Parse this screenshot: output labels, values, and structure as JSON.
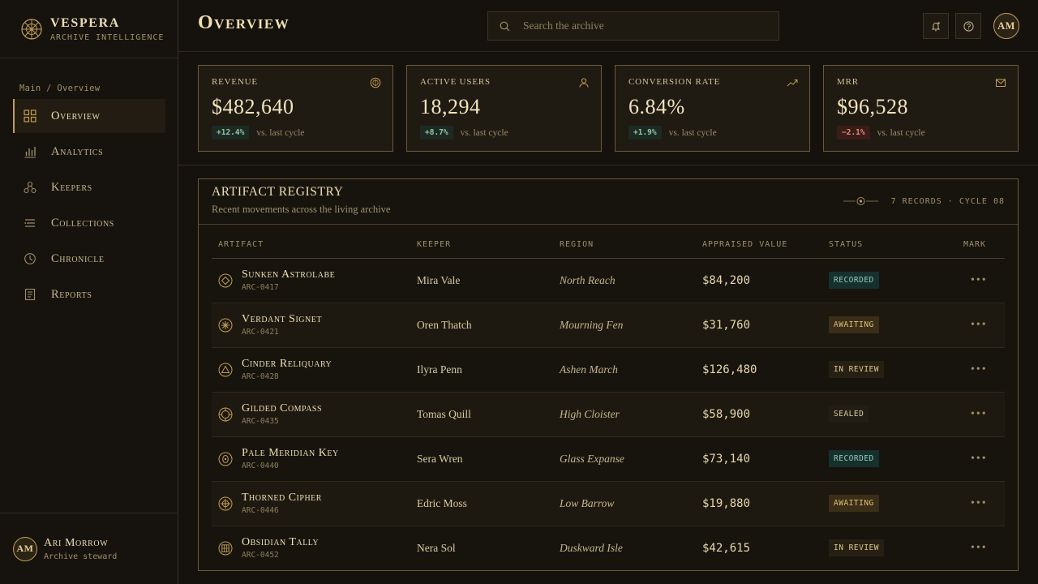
{
  "brand": {
    "name": "VESPERA",
    "tagline": "ARCHIVE INTELLIGENCE"
  },
  "breadcrumb": "Main / Overview",
  "nav": [
    {
      "label": "Overview",
      "icon": "grid-icon",
      "active": true
    },
    {
      "label": "Analytics",
      "icon": "bar-chart-icon"
    },
    {
      "label": "Keepers",
      "icon": "people-nodes-icon"
    },
    {
      "label": "Collections",
      "icon": "layers-icon"
    },
    {
      "label": "Chronicle",
      "icon": "clock-icon"
    },
    {
      "label": "Reports",
      "icon": "document-icon"
    }
  ],
  "user": {
    "initials": "AM",
    "name": "Ari Morrow",
    "role": "Archive steward"
  },
  "header": {
    "title": "Overview",
    "search_placeholder": "Search the archive",
    "avatar": "AM"
  },
  "kpis": [
    {
      "label": "Revenue",
      "value": "$482,640",
      "delta": "+12.4%",
      "trend": "up",
      "note": "vs. last cycle",
      "icon": "coin-icon"
    },
    {
      "label": "Active Users",
      "value": "18,294",
      "delta": "+8.7%",
      "trend": "up",
      "note": "vs. last cycle",
      "icon": "user-icon"
    },
    {
      "label": "Conversion Rate",
      "value": "6.84%",
      "delta": "+1.9%",
      "trend": "up",
      "note": "vs. last cycle",
      "icon": "trend-up-icon"
    },
    {
      "label": "MRR",
      "value": "$96,528",
      "delta": "−2.1%",
      "trend": "down",
      "note": "vs. last cycle",
      "icon": "envelope-icon"
    }
  ],
  "registry": {
    "title": "ARTIFACT REGISTRY",
    "subtitle": "Recent movements across the living archive",
    "meta": "7 RECORDS · CYCLE 08",
    "columns": [
      "ARTIFACT",
      "KEEPER",
      "REGION",
      "APPRAISED VALUE",
      "STATUS",
      "MARK"
    ],
    "rows": [
      {
        "name": "Sunken Astrolabe",
        "id": "ARC-0417",
        "keeper": "Mira Vale",
        "region": "North Reach",
        "value": "$84,200",
        "status": "RECORDED",
        "icon": "diamond-icon"
      },
      {
        "name": "Verdant Signet",
        "id": "ARC-0421",
        "keeper": "Oren Thatch",
        "region": "Mourning Fen",
        "value": "$31,760",
        "status": "AWAITING",
        "icon": "asterisk-icon"
      },
      {
        "name": "Cinder Reliquary",
        "id": "ARC-0428",
        "keeper": "Ilyra Penn",
        "region": "Ashen March",
        "value": "$126,480",
        "status": "IN REVIEW",
        "icon": "triangle-icon"
      },
      {
        "name": "Gilded Compass",
        "id": "ARC-0435",
        "keeper": "Tomas Quill",
        "region": "High Cloister",
        "value": "$58,900",
        "status": "SEALED",
        "icon": "compass-icon"
      },
      {
        "name": "Pale Meridian Key",
        "id": "ARC-0440",
        "keeper": "Sera Wren",
        "region": "Glass Expanse",
        "value": "$73,140",
        "status": "RECORDED",
        "icon": "key-icon"
      },
      {
        "name": "Thorned Cipher",
        "id": "ARC-0446",
        "keeper": "Edric Moss",
        "region": "Low Barrow",
        "value": "$19,880",
        "status": "AWAITING",
        "icon": "crosshair-icon"
      },
      {
        "name": "Obsidian Tally",
        "id": "ARC-0452",
        "keeper": "Nera Sol",
        "region": "Duskward Isle",
        "value": "$42,615",
        "status": "IN REVIEW",
        "icon": "tally-icon"
      }
    ]
  },
  "colors": {
    "accent": "#c29e55",
    "background": "#15120d",
    "positive": "#8fc8a8",
    "negative": "#e28a7c"
  }
}
